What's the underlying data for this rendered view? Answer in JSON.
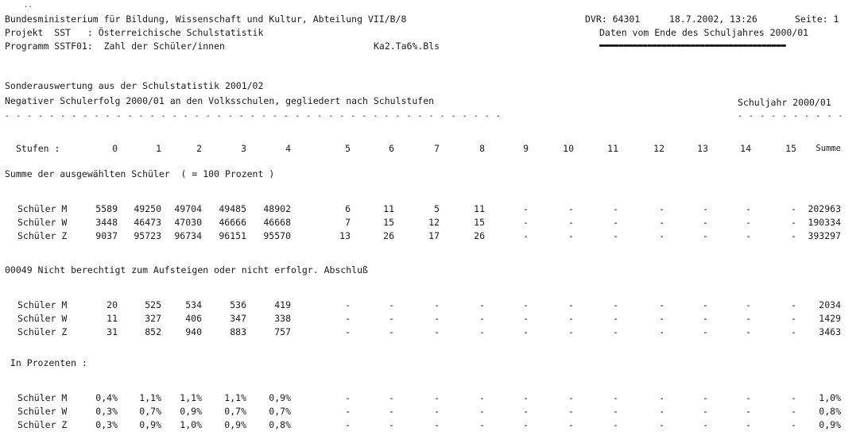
{
  "header": {
    "marks": "..",
    "ministry": "Bundesministerium für Bildung, Wissenschaft und Kultur, Abteilung VII/B/8",
    "dvr": "DVR: 64301",
    "datetime": "18.7.2002, 13:26",
    "page": "Seite: 1",
    "project": "Projekt  SST   : Österreichische Schulstatistik",
    "data_note": "Daten vom Ende des Schuljahres 2000/01",
    "program": "Programm SSTF01:  Zahl der Schüler/innen",
    "file": "Ka2.Ta6%.Bls"
  },
  "report": {
    "subtitle": "Sonderauswertung aus der Schulstatistik 2001/02",
    "title": "Negativer Schulerfolg 2000/01 an den Volksschulen, gegliedert nach Schulstufen",
    "schoolyear": "Schuljahr 2000/01"
  },
  "table": {
    "stufen_label": "Stufen :",
    "columns": [
      "0",
      "1",
      "2",
      "3",
      "4",
      "5",
      "6",
      "7",
      "8",
      "9",
      "10",
      "11",
      "12",
      "13",
      "14",
      "15",
      "Summe"
    ],
    "sections": [
      {
        "heading": "Summe der ausgewählten Schüler  ( = 100 Prozent )",
        "rows": [
          {
            "label": "Schüler M",
            "values": [
              "5589",
              "49250",
              "49704",
              "49485",
              "48902",
              "6",
              "11",
              "5",
              "11",
              "-",
              "-",
              "-",
              "-",
              "-",
              "-",
              "-",
              "202963"
            ]
          },
          {
            "label": "Schüler W",
            "values": [
              "3448",
              "46473",
              "47030",
              "46666",
              "46668",
              "7",
              "15",
              "12",
              "15",
              "-",
              "-",
              "-",
              "-",
              "-",
              "-",
              "-",
              "190334"
            ]
          },
          {
            "label": "Schüler Z",
            "values": [
              "9037",
              "95723",
              "96734",
              "96151",
              "95570",
              "13",
              "26",
              "17",
              "26",
              "-",
              "-",
              "-",
              "-",
              "-",
              "-",
              "-",
              "393297"
            ]
          }
        ]
      },
      {
        "heading": "00049 Nicht berechtigt zum Aufsteigen oder nicht erfolgr. Abschluß",
        "rows": [
          {
            "label": "Schüler M",
            "values": [
              "20",
              "525",
              "534",
              "536",
              "419",
              "-",
              "-",
              "-",
              "-",
              "-",
              "-",
              "-",
              "-",
              "-",
              "-",
              "-",
              "2034"
            ]
          },
          {
            "label": "Schüler W",
            "values": [
              "11",
              "327",
              "406",
              "347",
              "338",
              "-",
              "-",
              "-",
              "-",
              "-",
              "-",
              "-",
              "-",
              "-",
              "-",
              "-",
              "1429"
            ]
          },
          {
            "label": "Schüler Z",
            "values": [
              "31",
              "852",
              "940",
              "883",
              "757",
              "-",
              "-",
              "-",
              "-",
              "-",
              "-",
              "-",
              "-",
              "-",
              "-",
              "-",
              "3463"
            ]
          }
        ]
      },
      {
        "heading": " In Prozenten :",
        "rows": [
          {
            "label": "Schüler M",
            "values": [
              "0,4%",
              "1,1%",
              "1,1%",
              "1,1%",
              "0,9%",
              "-",
              "-",
              "-",
              "-",
              "-",
              "-",
              "-",
              "-",
              "-",
              "-",
              "-",
              "1,0%"
            ]
          },
          {
            "label": "Schüler W",
            "values": [
              "0,3%",
              "0,7%",
              "0,9%",
              "0,7%",
              "0,7%",
              "-",
              "-",
              "-",
              "-",
              "-",
              "-",
              "-",
              "-",
              "-",
              "-",
              "-",
              "0,8%"
            ]
          },
          {
            "label": "Schüler Z",
            "values": [
              "0,3%",
              "0,9%",
              "1,0%",
              "0,9%",
              "0,8%",
              "-",
              "-",
              "-",
              "-",
              "-",
              "-",
              "-",
              "-",
              "-",
              "-",
              "-",
              "0,9%"
            ]
          }
        ]
      }
    ]
  }
}
